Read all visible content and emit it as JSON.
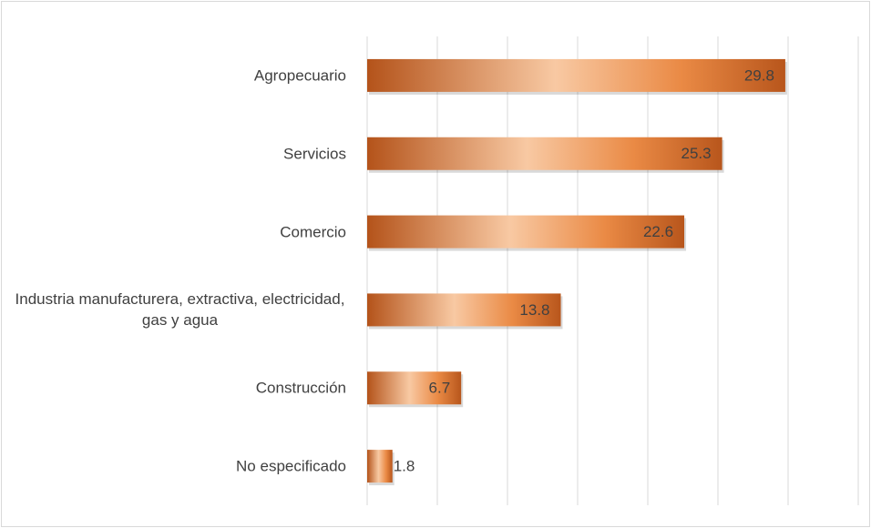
{
  "chart_data": {
    "type": "bar",
    "orientation": "horizontal",
    "categories": [
      "Agropecuario",
      "Servicios",
      "Comercio",
      "Industria manufacturera, extractiva, electricidad, gas y agua",
      "Construcción",
      "No especificado"
    ],
    "values": [
      29.8,
      25.3,
      22.6,
      13.8,
      6.7,
      1.8
    ],
    "color": "#e07a35",
    "xlim": [
      0,
      35
    ],
    "xticks": [
      0,
      5,
      10,
      15,
      20,
      25,
      30,
      35
    ],
    "grid": true
  }
}
